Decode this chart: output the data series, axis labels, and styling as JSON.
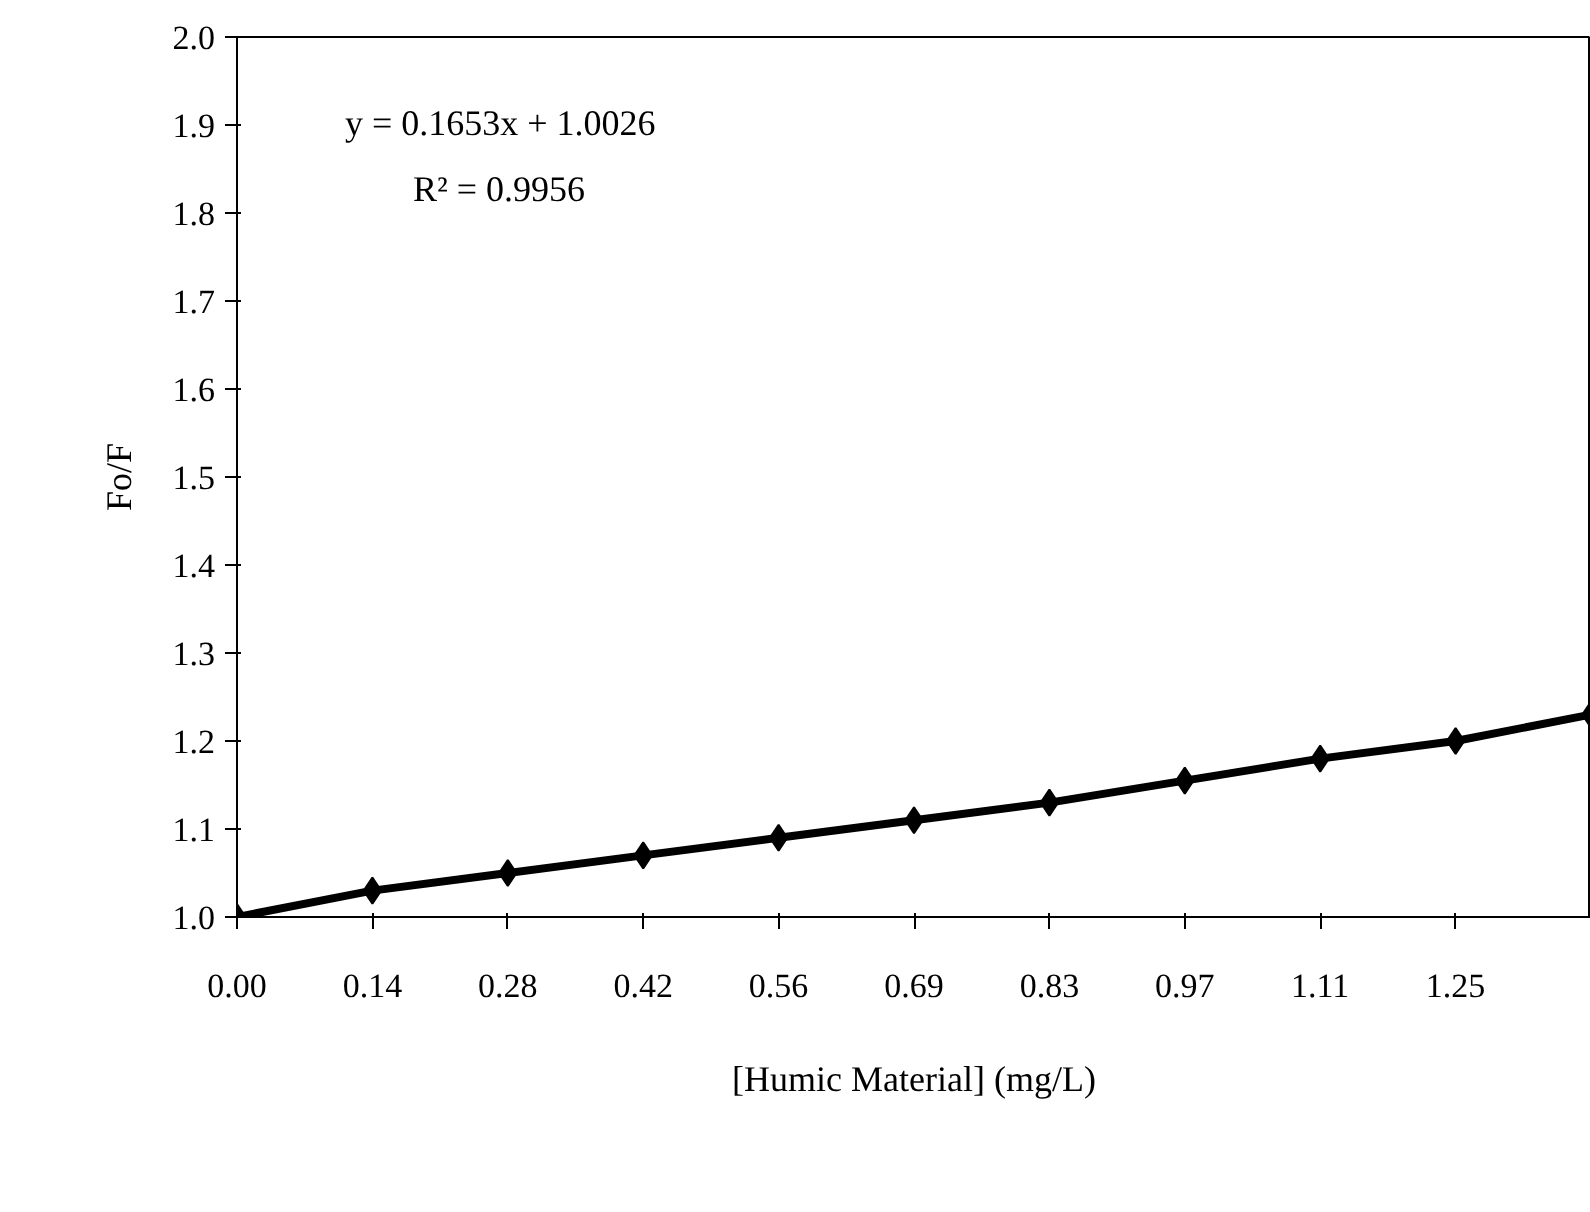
{
  "chart_data": {
    "type": "line",
    "xlabel": "[Humic Material] (mg/L)",
    "ylabel": "Fo/F",
    "categories": [
      "0.00",
      "0.14",
      "0.28",
      "0.42",
      "0.56",
      "0.69",
      "0.83",
      "0.97",
      "1.11",
      "1.25",
      null
    ],
    "series": [
      {
        "color": "#000000",
        "values": [
          1.0,
          1.03,
          1.05,
          1.07,
          1.09,
          1.11,
          1.13,
          1.155,
          1.18,
          1.2,
          1.23
        ]
      }
    ],
    "ylim": [
      1.0,
      2.0
    ],
    "yticks": [
      {
        "value": 1.0,
        "label": "1.0"
      },
      1.1,
      1.2,
      1.3,
      1.4,
      1.5,
      1.6,
      1.7,
      1.8,
      1.9,
      {
        "value": 2.0,
        "label": "2.0"
      }
    ],
    "annotations": [
      "y = 0.1653x + 1.0026",
      "R² = 0.9956"
    ],
    "marker": "diamond",
    "line_style": "solid",
    "grid": false
  }
}
